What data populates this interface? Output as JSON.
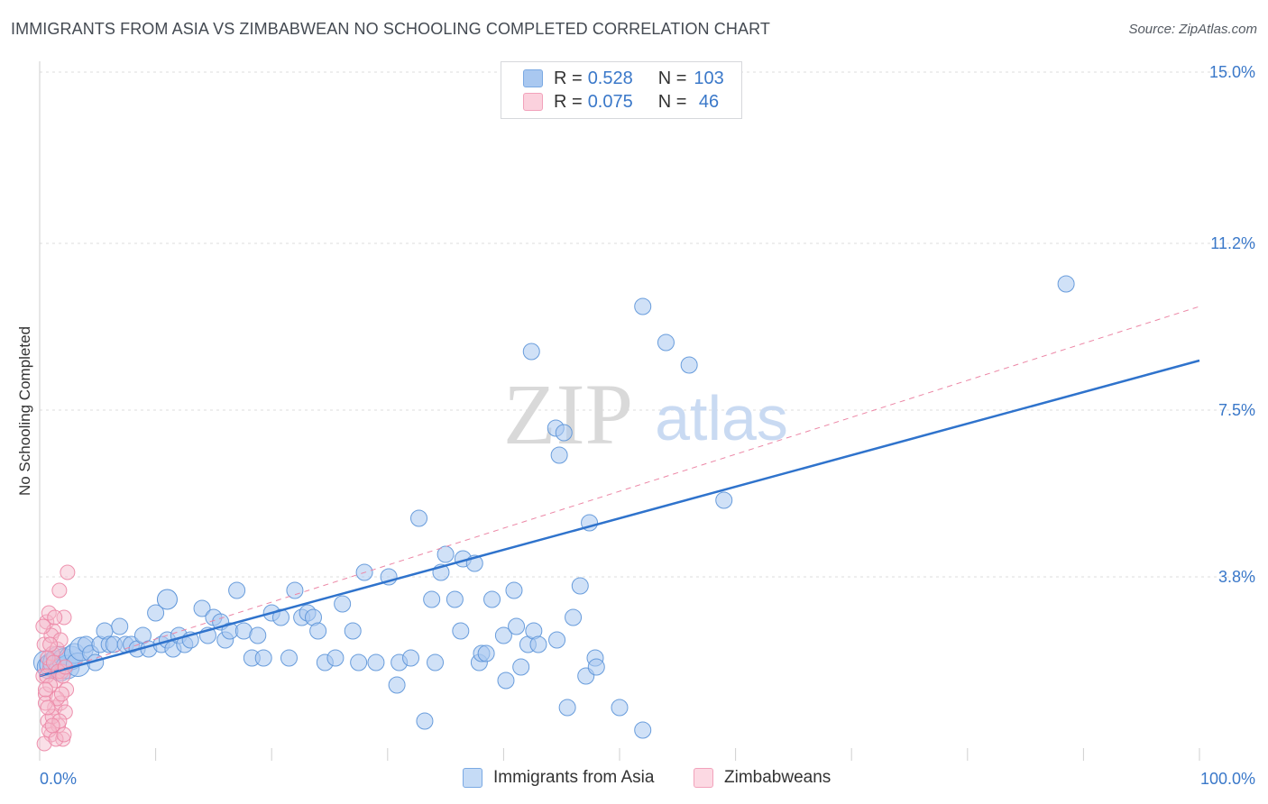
{
  "title": "IMMIGRANTS FROM ASIA VS ZIMBABWEAN NO SCHOOLING COMPLETED CORRELATION CHART",
  "source": "Source: ZipAtlas.com",
  "watermark": {
    "zip": "ZIP",
    "atlas": "atlas"
  },
  "legend": {
    "rows": [
      {
        "r_label": "R = ",
        "r_value": "0.528",
        "n_label": "N = ",
        "n_value": "103",
        "color": "#a9c8f0"
      },
      {
        "r_label": "R = ",
        "r_value": "0.075",
        "n_label": "N = ",
        "n_value": " 46",
        "color": "#f5b8c9"
      }
    ]
  },
  "bottom_legend": [
    "Immigrants from Asia",
    "Zimbabweans"
  ],
  "chart_data": {
    "type": "scatter",
    "xlabel": "",
    "ylabel": "No Schooling Completed",
    "xlim": [
      0,
      100
    ],
    "ylim": [
      0,
      15
    ],
    "x_tick_labels": [
      "0.0%",
      "100.0%"
    ],
    "y_ticks": [
      3.8,
      7.5,
      11.2,
      15.0
    ],
    "y_tick_labels": [
      "3.8%",
      "7.5%",
      "11.2%",
      "15.0%"
    ],
    "grid": true,
    "series": [
      {
        "name": "Immigrants from Asia",
        "color": "#a9c8f0",
        "stroke": "#5b93d8",
        "trend": {
          "x": [
            0,
            100
          ],
          "y": [
            1.6,
            8.6
          ],
          "style": "solid",
          "color": "#2f73cc"
        },
        "points": [
          [
            0.5,
            1.9
          ],
          [
            0.8,
            1.8
          ],
          [
            1.0,
            1.85
          ],
          [
            1.3,
            1.9
          ],
          [
            1.6,
            2.0
          ],
          [
            1.8,
            1.75
          ],
          [
            2.1,
            1.95
          ],
          [
            2.4,
            1.8
          ],
          [
            2.7,
            2.0
          ],
          [
            3.0,
            2.1
          ],
          [
            3.3,
            1.85
          ],
          [
            3.6,
            2.2
          ],
          [
            4.0,
            2.3
          ],
          [
            4.4,
            2.1
          ],
          [
            4.8,
            1.9
          ],
          [
            5.2,
            2.3
          ],
          [
            5.6,
            2.6
          ],
          [
            6.0,
            2.3
          ],
          [
            6.4,
            2.3
          ],
          [
            6.9,
            2.7
          ],
          [
            7.4,
            2.3
          ],
          [
            7.9,
            2.3
          ],
          [
            8.4,
            2.2
          ],
          [
            8.9,
            2.5
          ],
          [
            9.4,
            2.2
          ],
          [
            10.0,
            3.0
          ],
          [
            10.5,
            2.3
          ],
          [
            11.0,
            2.4
          ],
          [
            11.5,
            2.2
          ],
          [
            12.0,
            2.5
          ],
          [
            12.5,
            2.3
          ],
          [
            13.0,
            2.4
          ],
          [
            14.0,
            3.1
          ],
          [
            14.5,
            2.5
          ],
          [
            15.0,
            2.9
          ],
          [
            15.6,
            2.8
          ],
          [
            16.0,
            2.4
          ],
          [
            16.4,
            2.6
          ],
          [
            17.0,
            3.5
          ],
          [
            17.6,
            2.6
          ],
          [
            18.3,
            2.0
          ],
          [
            18.8,
            2.5
          ],
          [
            19.3,
            2.0
          ],
          [
            20.0,
            3.0
          ],
          [
            20.8,
            2.9
          ],
          [
            21.5,
            2.0
          ],
          [
            22.0,
            3.5
          ],
          [
            22.6,
            2.9
          ],
          [
            23.1,
            3.0
          ],
          [
            23.6,
            2.9
          ],
          [
            24.0,
            2.6
          ],
          [
            24.6,
            1.9
          ],
          [
            25.5,
            2.0
          ],
          [
            26.1,
            3.2
          ],
          [
            27.0,
            2.6
          ],
          [
            27.5,
            1.9
          ],
          [
            28.0,
            3.9
          ],
          [
            29.0,
            1.9
          ],
          [
            30.1,
            3.8
          ],
          [
            30.8,
            1.4
          ],
          [
            31.0,
            1.9
          ],
          [
            32.0,
            2.0
          ],
          [
            32.7,
            5.1
          ],
          [
            33.8,
            3.3
          ],
          [
            34.1,
            1.9
          ],
          [
            34.6,
            3.9
          ],
          [
            35.0,
            4.3
          ],
          [
            35.8,
            3.3
          ],
          [
            36.3,
            2.6
          ],
          [
            36.5,
            4.2
          ],
          [
            37.5,
            4.1
          ],
          [
            37.9,
            1.9
          ],
          [
            38.1,
            2.1
          ],
          [
            38.5,
            2.1
          ],
          [
            39.0,
            3.3
          ],
          [
            40.0,
            2.5
          ],
          [
            40.2,
            1.5
          ],
          [
            40.9,
            3.5
          ],
          [
            41.1,
            2.7
          ],
          [
            42.1,
            2.3
          ],
          [
            42.4,
            8.8
          ],
          [
            42.6,
            2.6
          ],
          [
            43.0,
            2.3
          ],
          [
            44.5,
            7.1
          ],
          [
            44.8,
            6.5
          ],
          [
            45.2,
            7.0
          ],
          [
            45.5,
            0.9
          ],
          [
            46.0,
            2.9
          ],
          [
            46.6,
            3.6
          ],
          [
            47.1,
            1.6
          ],
          [
            47.4,
            5.0
          ],
          [
            47.9,
            2.0
          ],
          [
            48.0,
            1.8
          ],
          [
            50.0,
            0.9
          ],
          [
            52.0,
            9.8
          ],
          [
            52.0,
            0.4
          ],
          [
            54.0,
            9.0
          ],
          [
            56.0,
            8.5
          ],
          [
            59.0,
            5.5
          ],
          [
            88.5,
            10.3
          ],
          [
            41.5,
            1.8
          ],
          [
            44.6,
            2.4
          ],
          [
            33.2,
            0.6
          ]
        ]
      },
      {
        "name": "Zimbabweans",
        "color": "#f5b8c9",
        "stroke": "#ec87a6",
        "trend": {
          "x": [
            0,
            100
          ],
          "y": [
            1.6,
            9.8
          ],
          "style": "dashed",
          "color": "#ec87a6"
        },
        "points": [
          [
            0.3,
            1.6
          ],
          [
            0.4,
            2.3
          ],
          [
            0.5,
            1.2
          ],
          [
            0.6,
            2.8
          ],
          [
            0.7,
            0.6
          ],
          [
            0.8,
            3.0
          ],
          [
            0.9,
            1.8
          ],
          [
            1.0,
            0.3
          ],
          [
            1.1,
            2.1
          ],
          [
            1.2,
            2.6
          ],
          [
            1.3,
            0.9
          ],
          [
            1.4,
            1.5
          ],
          [
            1.5,
            2.2
          ],
          [
            1.6,
            0.5
          ],
          [
            1.7,
            3.5
          ],
          [
            1.8,
            1.0
          ],
          [
            1.9,
            1.7
          ],
          [
            2.0,
            0.2
          ],
          [
            2.1,
            2.9
          ],
          [
            2.2,
            0.8
          ],
          [
            2.3,
            1.3
          ],
          [
            2.4,
            3.9
          ],
          [
            0.4,
            0.1
          ],
          [
            0.5,
            1.0
          ],
          [
            0.6,
            1.6
          ],
          [
            0.7,
            2.0
          ],
          [
            0.8,
            0.4
          ],
          [
            0.9,
            1.4
          ],
          [
            1.0,
            2.5
          ],
          [
            1.1,
            0.7
          ],
          [
            1.2,
            1.9
          ],
          [
            1.3,
            2.9
          ],
          [
            1.4,
            0.2
          ],
          [
            1.5,
            1.1
          ],
          [
            1.6,
            1.7
          ],
          [
            1.7,
            0.6
          ],
          [
            1.8,
            2.4
          ],
          [
            1.9,
            1.2
          ],
          [
            2.0,
            1.6
          ],
          [
            2.1,
            0.3
          ],
          [
            2.2,
            1.8
          ],
          [
            0.3,
            2.7
          ],
          [
            0.5,
            1.3
          ],
          [
            0.7,
            0.9
          ],
          [
            0.9,
            2.3
          ],
          [
            1.1,
            0.5
          ]
        ]
      }
    ]
  }
}
